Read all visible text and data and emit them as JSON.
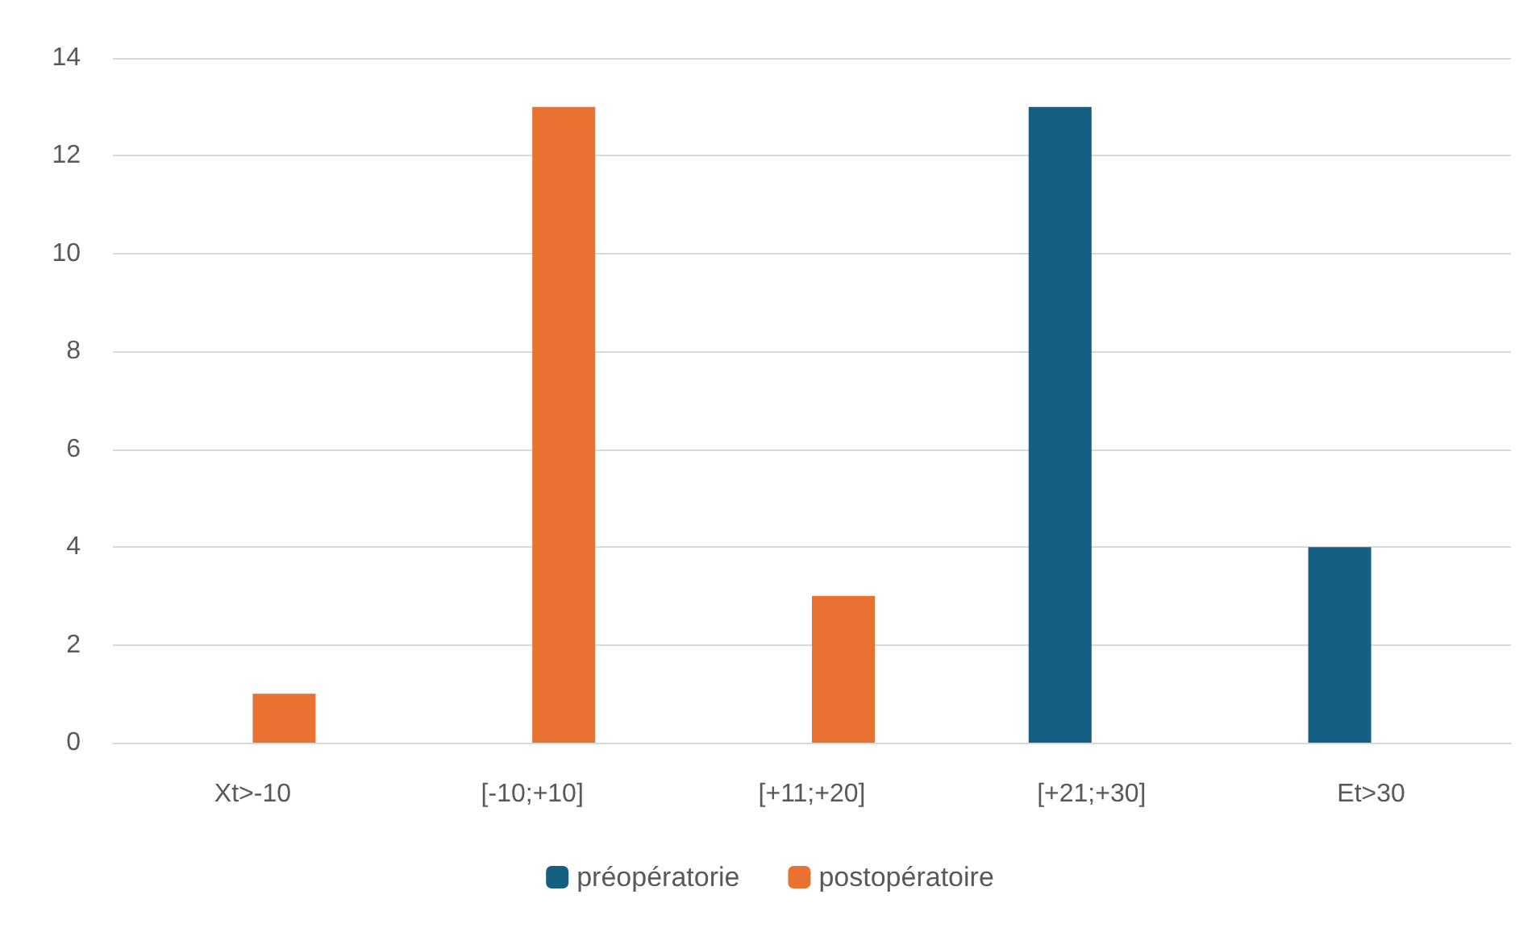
{
  "chart_data": {
    "type": "bar",
    "categories": [
      "Xt>-10",
      "[-10;+10]",
      "[+11;+20]",
      "[+21;+30]",
      "Et>30"
    ],
    "series": [
      {
        "name": "préopératorie",
        "color": "#156082",
        "values": [
          0,
          0,
          0,
          13,
          4
        ]
      },
      {
        "name": "postopératoire",
        "color": "#e97132",
        "values": [
          1,
          13,
          3,
          0,
          0
        ]
      }
    ],
    "ylim": [
      0,
      14
    ],
    "yticks": [
      0,
      2,
      4,
      6,
      8,
      10,
      12,
      14
    ],
    "grid": "y",
    "legend": "bottom"
  }
}
